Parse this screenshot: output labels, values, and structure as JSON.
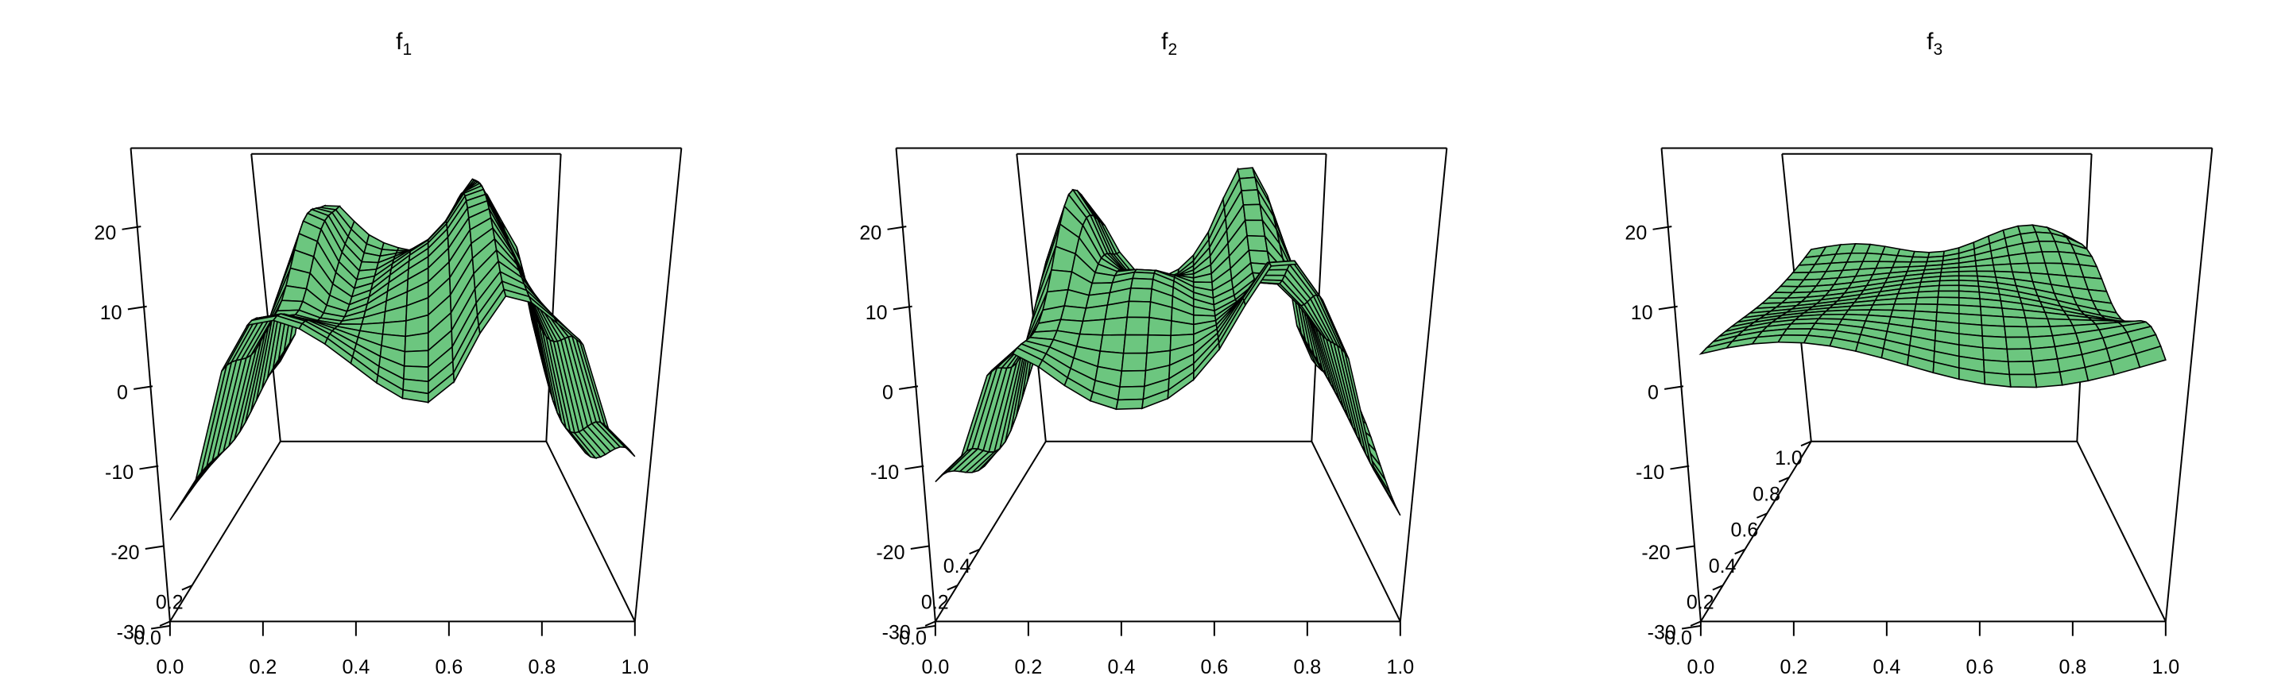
{
  "chart_data": [
    {
      "type": "surface",
      "title": "f",
      "title_subscript": "1",
      "x_ticks": [
        "0.0",
        "0.2",
        "0.4",
        "0.6",
        "0.8",
        "1.0"
      ],
      "y_ticks": [
        "0.0",
        "0.2"
      ],
      "z_ticks": [
        "20",
        "10",
        "0",
        "-10",
        "-20",
        "-30"
      ],
      "zlim": [
        -30,
        30
      ],
      "xlim": [
        0,
        1
      ],
      "ylim": [
        0,
        1
      ],
      "surface_color": "#6cc67f",
      "edge_color": "#000000"
    },
    {
      "type": "surface",
      "title": "f",
      "title_subscript": "2",
      "x_ticks": [
        "0.0",
        "0.2",
        "0.4",
        "0.6",
        "0.8",
        "1.0"
      ],
      "y_ticks": [
        "0.0",
        "0.2",
        "0.4"
      ],
      "z_ticks": [
        "20",
        "10",
        "0",
        "-10",
        "-20",
        "-30"
      ],
      "zlim": [
        -30,
        30
      ],
      "xlim": [
        0,
        1
      ],
      "ylim": [
        0,
        1
      ],
      "surface_color": "#6cc67f",
      "edge_color": "#000000"
    },
    {
      "type": "surface",
      "title": "f",
      "title_subscript": "3",
      "x_ticks": [
        "0.0",
        "0.2",
        "0.4",
        "0.6",
        "0.8",
        "1.0"
      ],
      "y_ticks": [
        "0.0",
        "0.2",
        "0.4",
        "0.6",
        "0.8",
        "1.0"
      ],
      "z_ticks": [
        "20",
        "10",
        "0",
        "-10",
        "-20",
        "-30"
      ],
      "zlim": [
        -30,
        30
      ],
      "xlim": [
        0,
        1
      ],
      "ylim": [
        0,
        1
      ],
      "surface_color": "#6cc67f",
      "edge_color": "#000000"
    }
  ]
}
